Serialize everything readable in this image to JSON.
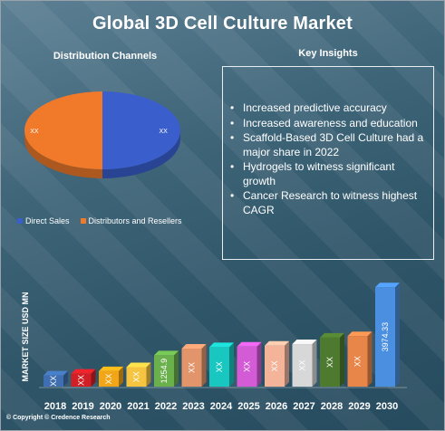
{
  "title": "Global 3D Cell Culture Market",
  "pie_section_title": "Distribution Channels",
  "insights_title": "Key Insights",
  "insights": [
    "Increased predictive accuracy",
    "Increased awareness and education",
    "Scaffold-Based 3D Cell Culture had a major share in 2022",
    "Hydrogels to witness significant growth",
    "Cancer Research to witness highest CAGR"
  ],
  "copyright": "© Copyright © Credence Research",
  "chart_data": [
    {
      "type": "pie",
      "title": "Distribution Channels",
      "categories": [
        "Direct Sales",
        "Distributors and Resellers"
      ],
      "values": [
        50,
        50
      ],
      "data_labels": [
        "XX",
        "XX"
      ],
      "colors": [
        "#3a5fcd",
        "#f07a2a"
      ],
      "legend": "bottom"
    },
    {
      "type": "bar",
      "ylabel": "MARKET SIZE USD MN",
      "categories": [
        "2018",
        "2019",
        "2020",
        "2021",
        "2022",
        "2023",
        "2024",
        "2025",
        "2026",
        "2027",
        "2028",
        "2029",
        "2030"
      ],
      "values": [
        450,
        520,
        620,
        780,
        1254.9,
        1520,
        1580,
        1600,
        1640,
        1700,
        1960,
        2020,
        3974.33
      ],
      "data_labels": [
        "XX",
        "XX",
        "XX",
        "XX",
        "1254.9",
        "XX",
        "XX",
        "XX",
        "XX",
        "XX",
        "XX",
        "XX",
        "3974.33"
      ],
      "colors": [
        "#3f6fb0",
        "#d21f26",
        "#f2a516",
        "#f5c542",
        "#6ab04c",
        "#e2956b",
        "#19c7c1",
        "#d35bd6",
        "#f3b49a",
        "#d8d8d8",
        "#4d7a2e",
        "#e8864a",
        "#4a8fe0"
      ],
      "ylim": [
        0,
        4200
      ],
      "grid": false
    }
  ]
}
